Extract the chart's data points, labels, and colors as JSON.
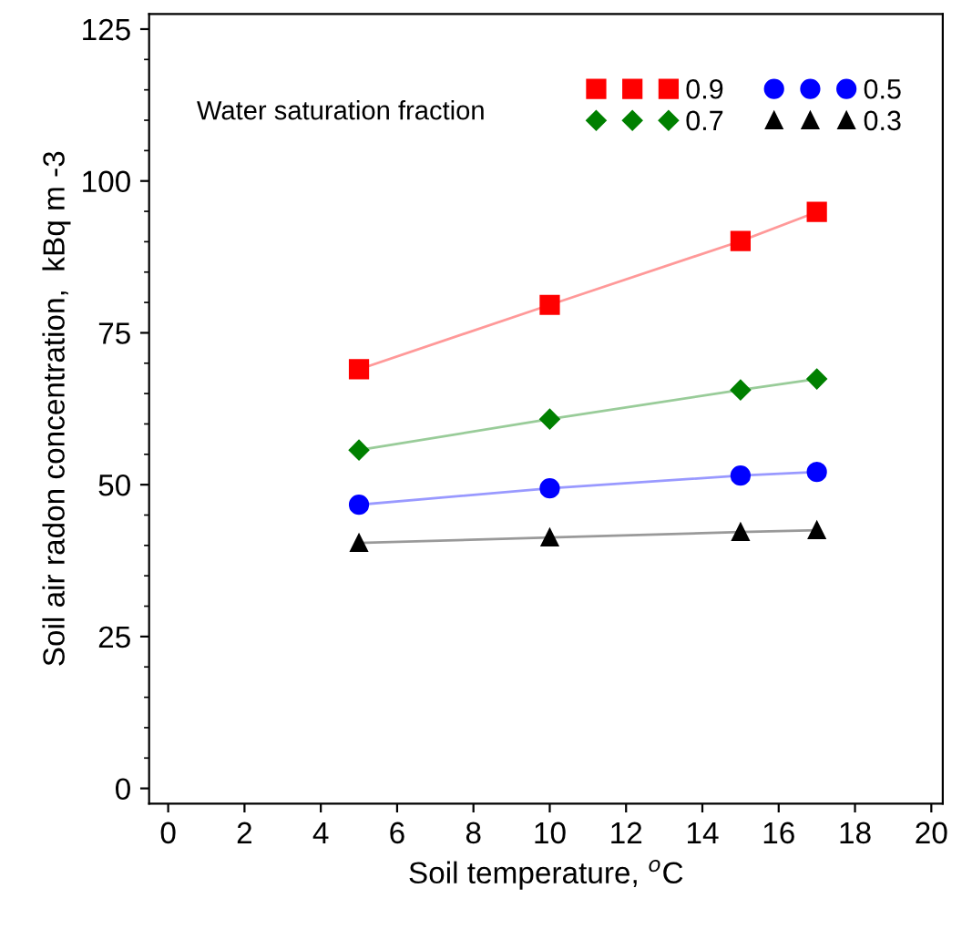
{
  "chart_data": {
    "type": "line",
    "xlabel": "Soil temperature, $^{o}$C",
    "ylabel": "Soil air radon concentration,  kBq m -3",
    "legend_title": "Water saturation fraction",
    "legend": "top right",
    "grid": false,
    "x": [
      5,
      10,
      15,
      17
    ],
    "series": [
      {
        "name": "0.9",
        "color": "#ff0000",
        "marker": "square",
        "values": [
          69,
          79.6,
          90.1,
          94.9
        ]
      },
      {
        "name": "0.7",
        "color": "#008000",
        "marker": "diamond",
        "values": [
          55.7,
          60.8,
          65.6,
          67.4
        ]
      },
      {
        "name": "0.5",
        "color": "#0000ff",
        "marker": "circle",
        "values": [
          46.7,
          49.4,
          51.5,
          52.1
        ]
      },
      {
        "name": "0.3",
        "color": "#000000",
        "marker": "triangle",
        "values": [
          40.4,
          41.3,
          42.2,
          42.5
        ]
      }
    ],
    "xlim": [
      -0.5,
      20.3
    ],
    "xticks": [
      0,
      2,
      4,
      6,
      8,
      10,
      12,
      14,
      16,
      18,
      20
    ],
    "ylim": [
      -2.5,
      127.5
    ],
    "yticks": [
      0,
      25,
      50,
      75,
      100,
      125
    ]
  }
}
